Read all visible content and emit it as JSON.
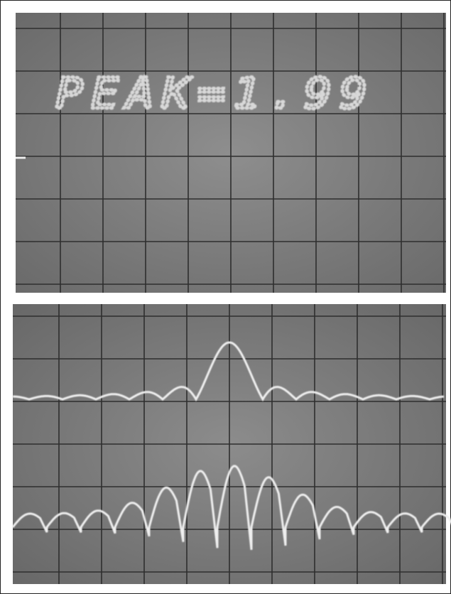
{
  "screen": {
    "readout": "PEAK=1.99"
  }
}
